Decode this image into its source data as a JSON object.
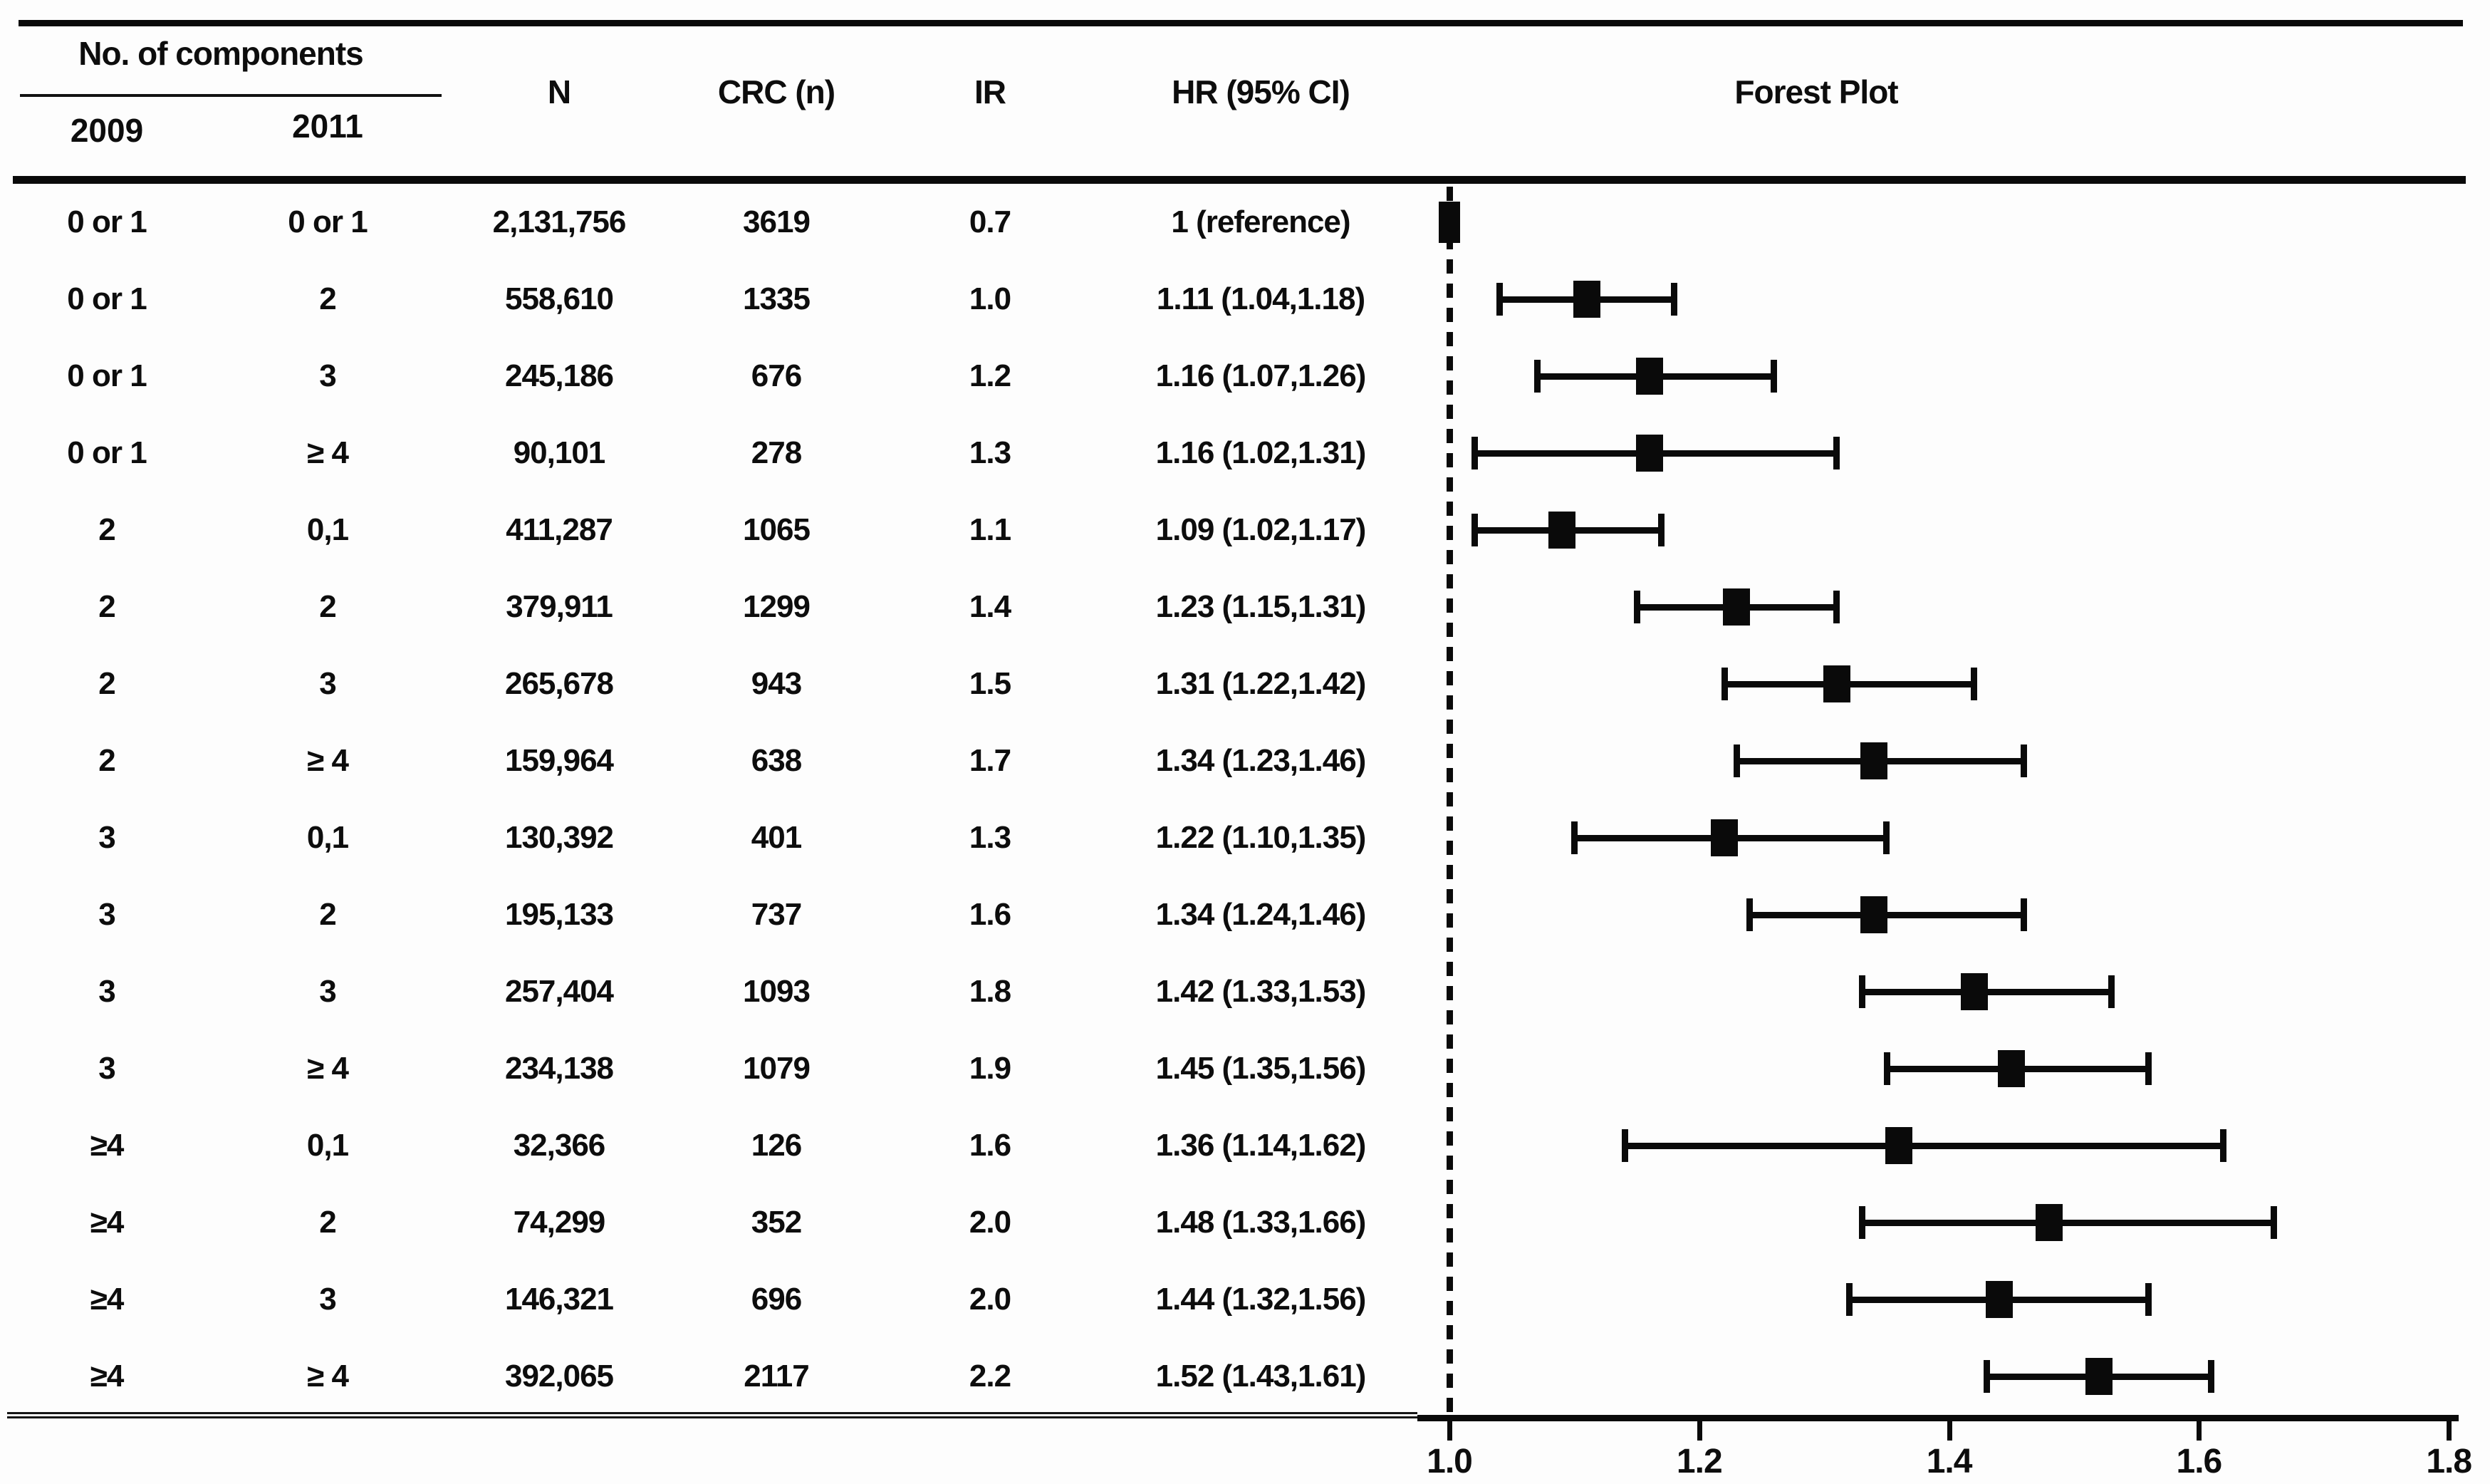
{
  "header": {
    "group": "No. of components",
    "sub": [
      "2009",
      "2011"
    ],
    "n": "N",
    "crc": "CRC (n)",
    "ir": "IR",
    "hr": "HR (95% CI)",
    "plot": "Forest Plot"
  },
  "chart_data": {
    "type": "forest",
    "title": "Forest Plot",
    "xlim": [
      1.0,
      1.8
    ],
    "reference_value": 1.0,
    "x_ticks": [
      1.0,
      1.2,
      1.4,
      1.6,
      1.8
    ],
    "x_tick_labels": [
      "1.0",
      "1.2",
      "1.4",
      "1.6",
      "1.8"
    ],
    "grid": "off",
    "columns": [
      "2009",
      "2011",
      "N",
      "CRC (n)",
      "IR",
      "HR (95% CI)"
    ],
    "rows": [
      {
        "y2009": "0 or 1",
        "y2011": "0 or 1",
        "n": "2,131,756",
        "crc": "3619",
        "ir": "0.7",
        "hr_label": "1 (reference)",
        "hr": 1.0,
        "lo": null,
        "hi": null
      },
      {
        "y2009": "0 or 1",
        "y2011": "2",
        "n": "558,610",
        "crc": "1335",
        "ir": "1.0",
        "hr_label": "1.11 (1.04,1.18)",
        "hr": 1.11,
        "lo": 1.04,
        "hi": 1.18
      },
      {
        "y2009": "0 or 1",
        "y2011": "3",
        "n": "245,186",
        "crc": "676",
        "ir": "1.2",
        "hr_label": "1.16 (1.07,1.26)",
        "hr": 1.16,
        "lo": 1.07,
        "hi": 1.26
      },
      {
        "y2009": "0 or 1",
        "y2011": "≥ 4",
        "n": "90,101",
        "crc": "278",
        "ir": "1.3",
        "hr_label": "1.16 (1.02,1.31)",
        "hr": 1.16,
        "lo": 1.02,
        "hi": 1.31
      },
      {
        "y2009": "2",
        "y2011": "0,1",
        "n": "411,287",
        "crc": "1065",
        "ir": "1.1",
        "hr_label": "1.09 (1.02,1.17)",
        "hr": 1.09,
        "lo": 1.02,
        "hi": 1.17
      },
      {
        "y2009": "2",
        "y2011": "2",
        "n": "379,911",
        "crc": "1299",
        "ir": "1.4",
        "hr_label": "1.23 (1.15,1.31)",
        "hr": 1.23,
        "lo": 1.15,
        "hi": 1.31
      },
      {
        "y2009": "2",
        "y2011": "3",
        "n": "265,678",
        "crc": "943",
        "ir": "1.5",
        "hr_label": "1.31 (1.22,1.42)",
        "hr": 1.31,
        "lo": 1.22,
        "hi": 1.42
      },
      {
        "y2009": "2",
        "y2011": "≥ 4",
        "n": "159,964",
        "crc": "638",
        "ir": "1.7",
        "hr_label": "1.34 (1.23,1.46)",
        "hr": 1.34,
        "lo": 1.23,
        "hi": 1.46
      },
      {
        "y2009": "3",
        "y2011": "0,1",
        "n": "130,392",
        "crc": "401",
        "ir": "1.3",
        "hr_label": "1.22 (1.10,1.35)",
        "hr": 1.22,
        "lo": 1.1,
        "hi": 1.35
      },
      {
        "y2009": "3",
        "y2011": "2",
        "n": "195,133",
        "crc": "737",
        "ir": "1.6",
        "hr_label": "1.34 (1.24,1.46)",
        "hr": 1.34,
        "lo": 1.24,
        "hi": 1.46
      },
      {
        "y2009": "3",
        "y2011": "3",
        "n": "257,404",
        "crc": "1093",
        "ir": "1.8",
        "hr_label": "1.42 (1.33,1.53)",
        "hr": 1.42,
        "lo": 1.33,
        "hi": 1.53
      },
      {
        "y2009": "3",
        "y2011": "≥ 4",
        "n": "234,138",
        "crc": "1079",
        "ir": "1.9",
        "hr_label": "1.45 (1.35,1.56)",
        "hr": 1.45,
        "lo": 1.35,
        "hi": 1.56
      },
      {
        "y2009": "≥4",
        "y2011": "0,1",
        "n": "32,366",
        "crc": "126",
        "ir": "1.6",
        "hr_label": "1.36 (1.14,1.62)",
        "hr": 1.36,
        "lo": 1.14,
        "hi": 1.62
      },
      {
        "y2009": "≥4",
        "y2011": "2",
        "n": "74,299",
        "crc": "352",
        "ir": "2.0",
        "hr_label": "1.48 (1.33,1.66)",
        "hr": 1.48,
        "lo": 1.33,
        "hi": 1.66
      },
      {
        "y2009": "≥4",
        "y2011": "3",
        "n": "146,321",
        "crc": "696",
        "ir": "2.0",
        "hr_label": "1.44 (1.32,1.56)",
        "hr": 1.44,
        "lo": 1.32,
        "hi": 1.56
      },
      {
        "y2009": "≥4",
        "y2011": "≥ 4",
        "n": "392,065",
        "crc": "2117",
        "ir": "2.2",
        "hr_label": "1.52 (1.43,1.61)",
        "hr": 1.52,
        "lo": 1.43,
        "hi": 1.61
      }
    ],
    "colors": {
      "ink": "#0a0a0a",
      "background": "#fdfdfd"
    }
  }
}
